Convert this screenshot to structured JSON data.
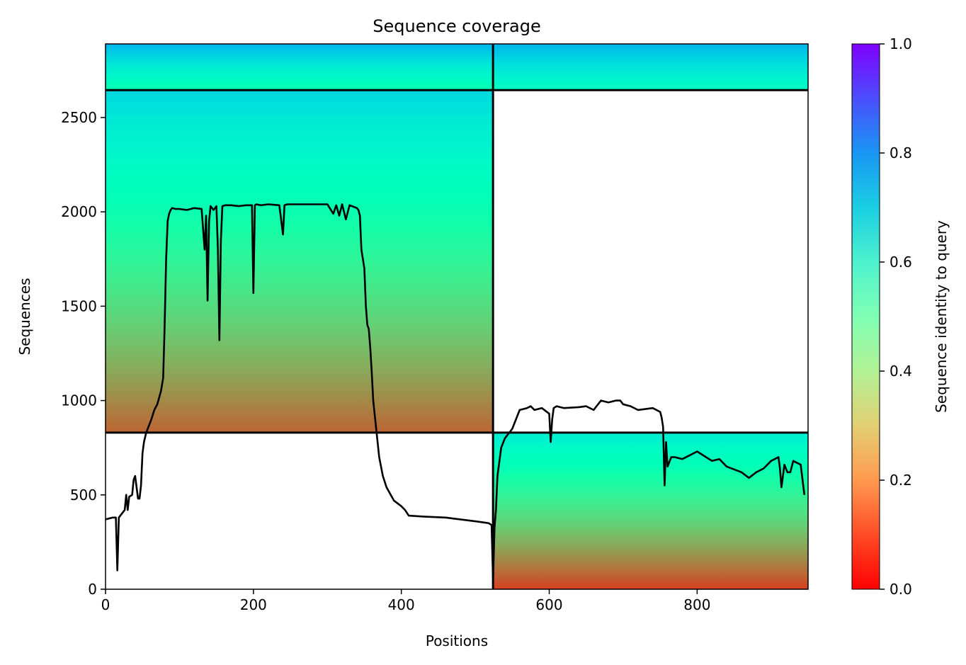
{
  "chart_data": {
    "type": "heatmap",
    "title": "Sequence coverage",
    "xlabel": "Positions",
    "ylabel": "Sequences",
    "xlim": [
      0,
      950
    ],
    "ylim": [
      0,
      2890
    ],
    "xticks": [
      0,
      200,
      400,
      600,
      800
    ],
    "yticks": [
      0,
      500,
      1000,
      1500,
      2000,
      2500
    ],
    "colorbar": {
      "label": "Sequence identity to query",
      "range": [
        0,
        1
      ],
      "ticks": [
        0.0,
        0.2,
        0.4,
        0.6,
        0.8,
        1.0
      ],
      "tick_labels": [
        "0.0",
        "0.2",
        "0.4",
        "0.6",
        "0.8",
        "1.0"
      ],
      "colormap": "rainbow_r"
    },
    "dividers": {
      "vertical_x": [
        524
      ],
      "horizontal_y": [
        830,
        2645
      ]
    },
    "blocks": [
      {
        "name": "block-left-top",
        "x": [
          0,
          524
        ],
        "y": [
          2645,
          2890
        ],
        "identity_top": 0.75,
        "identity_bottom": 0.5
      },
      {
        "name": "block-right-top",
        "x": [
          524,
          950
        ],
        "y": [
          2645,
          2890
        ],
        "identity_top": 0.75,
        "identity_bottom": 0.55
      },
      {
        "name": "block-left-middle",
        "x": [
          0,
          524
        ],
        "y": [
          830,
          2645
        ],
        "identity_top": 0.68,
        "identity_bottom": 0.13
      },
      {
        "name": "block-right-bottom",
        "x": [
          524,
          950
        ],
        "y": [
          0,
          830
        ],
        "identity_top": 0.62,
        "identity_bottom": 0.08
      }
    ],
    "coverage_line": {
      "x": [
        0,
        10,
        14,
        16,
        18,
        20,
        26,
        28,
        30,
        32,
        36,
        38,
        40,
        44,
        46,
        48,
        50,
        52,
        55,
        58,
        62,
        66,
        70,
        75,
        78,
        80,
        82,
        84,
        86,
        88,
        90,
        95,
        100,
        110,
        120,
        130,
        134,
        136,
        138,
        140,
        142,
        146,
        150,
        152,
        154,
        156,
        158,
        162,
        170,
        180,
        190,
        198,
        200,
        202,
        204,
        210,
        220,
        235,
        240,
        242,
        246,
        260,
        280,
        300,
        308,
        312,
        316,
        320,
        325,
        330,
        340,
        342,
        344,
        346,
        350,
        352,
        354,
        356,
        358,
        360,
        362,
        366,
        370,
        375,
        380,
        390,
        400,
        405,
        410,
        430,
        460,
        500,
        518,
        522,
        524,
        526,
        528,
        530,
        535,
        540,
        550,
        560,
        570,
        575,
        580,
        590,
        600,
        602,
        604,
        606,
        610,
        620,
        640,
        650,
        660,
        670,
        680,
        690,
        696,
        700,
        710,
        720,
        740,
        750,
        752,
        754,
        756,
        758,
        760,
        765,
        770,
        780,
        800,
        820,
        830,
        840,
        860,
        870,
        880,
        890,
        900,
        910,
        912,
        914,
        918,
        922,
        926,
        930,
        940,
        945,
        950
      ],
      "y": [
        370,
        380,
        380,
        100,
        380,
        390,
        420,
        500,
        420,
        490,
        500,
        580,
        600,
        480,
        480,
        550,
        720,
        780,
        830,
        860,
        900,
        950,
        980,
        1050,
        1120,
        1400,
        1750,
        1950,
        1990,
        2010,
        2020,
        2015,
        2015,
        2010,
        2020,
        2015,
        1800,
        1980,
        1530,
        1950,
        2030,
        2010,
        2030,
        1800,
        1320,
        1850,
        2030,
        2035,
        2035,
        2030,
        2035,
        2035,
        1570,
        2035,
        2040,
        2035,
        2040,
        2035,
        1880,
        2035,
        2040,
        2040,
        2040,
        2040,
        1990,
        2035,
        1980,
        2040,
        1960,
        2035,
        2020,
        2010,
        1980,
        1800,
        1700,
        1500,
        1400,
        1380,
        1280,
        1150,
        1000,
        850,
        700,
        600,
        540,
        470,
        440,
        420,
        390,
        385,
        380,
        360,
        350,
        340,
        50,
        330,
        420,
        600,
        750,
        800,
        850,
        950,
        960,
        970,
        950,
        960,
        930,
        780,
        900,
        960,
        970,
        960,
        965,
        970,
        950,
        1000,
        990,
        1000,
        1000,
        980,
        970,
        950,
        960,
        940,
        910,
        860,
        550,
        780,
        650,
        700,
        700,
        690,
        730,
        680,
        690,
        650,
        620,
        590,
        620,
        640,
        680,
        700,
        640,
        540,
        660,
        620,
        620,
        680,
        660,
        500
      ]
    }
  }
}
